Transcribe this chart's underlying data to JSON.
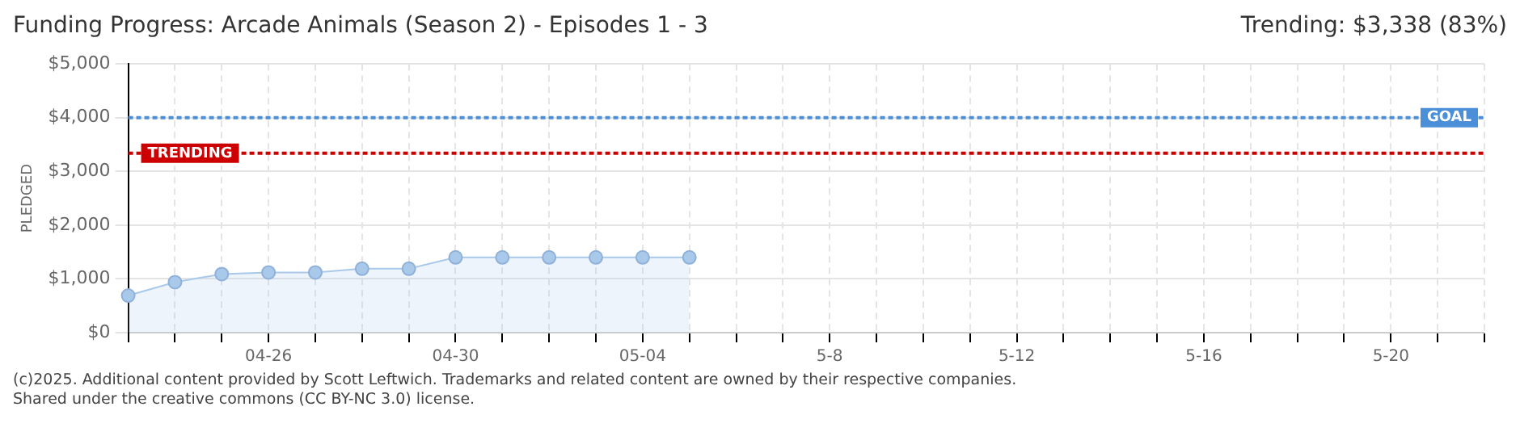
{
  "chart_data": {
    "type": "area",
    "title": "Funding Progress: Arcade Animals (Season 2) - Episodes 1 - 3",
    "subtitle": "Trending: $3,338 (83%)",
    "ylabel": "PLEDGED",
    "categories": [
      null,
      null,
      null,
      "04-26",
      null,
      null,
      null,
      "04-30",
      null,
      null,
      null,
      "05-04",
      null,
      null,
      null,
      "5-8",
      null,
      null,
      null,
      "5-12",
      null,
      null,
      null,
      "5-16",
      null,
      null,
      null,
      "5-20",
      null,
      null
    ],
    "series": [
      {
        "color": "#a9c9ea",
        "values": [
          690,
          940,
          1090,
          1120,
          1120,
          1190,
          1190,
          1400,
          1400,
          1400,
          1400,
          1400,
          1400,
          null,
          null,
          null,
          null,
          null,
          null,
          null,
          null,
          null,
          null,
          null,
          null,
          null,
          null,
          null,
          null,
          null
        ]
      }
    ],
    "ylim": [
      0,
      5000
    ],
    "yticks": [
      {
        "value": 0,
        "label": "$0"
      },
      {
        "value": 1000,
        "label": "$1,000"
      },
      {
        "value": 2000,
        "label": "$2,000"
      },
      {
        "value": 3000,
        "label": "$3,000"
      },
      {
        "value": 4000,
        "label": "$4,000"
      },
      {
        "value": 5000,
        "label": "$5,000"
      }
    ],
    "ref_lines": [
      {
        "axis": "y",
        "value": 4000,
        "label": "GOAL",
        "color": "#4a8fd8",
        "line_style": "dotted"
      },
      {
        "axis": "y",
        "value": 3338,
        "label": "TRENDING",
        "color": "#cc0000",
        "line_style": "dotted"
      }
    ],
    "annotations": [
      "(c)2025. Additional content provided by Scott Leftwich. Trademarks and related content are owned by their respective companies.",
      "Shared under the creative commons (CC BY-NC 3.0) license."
    ],
    "grid": true,
    "legend": false,
    "marker": "circle",
    "line_style": "solid"
  }
}
